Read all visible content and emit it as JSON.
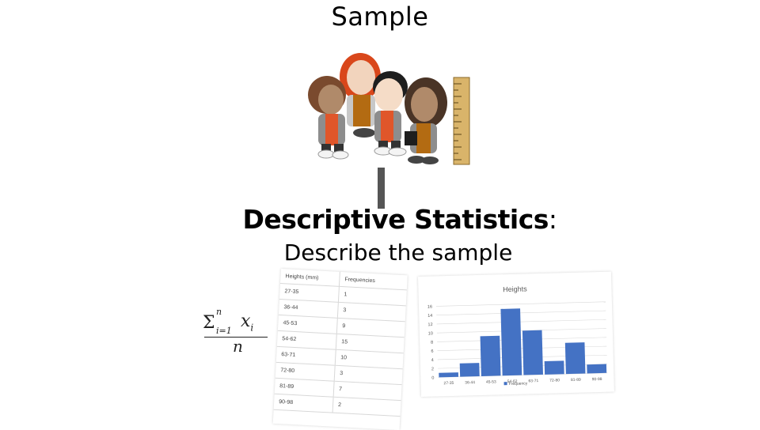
{
  "slide": {
    "title": "Sample",
    "heading": "Descriptive Statistics",
    "heading_colon": ":",
    "subheading": "Describe the sample"
  },
  "formula": {
    "sigma": "Σ",
    "upper_limit": "n",
    "lower_limit": "i=1",
    "term": "x",
    "term_subscript": "i",
    "denominator": "n"
  },
  "illustration": {
    "icon": "people-with-ruler"
  },
  "table": {
    "headers": [
      "Heights (mm)",
      "Frequencies"
    ],
    "rows": [
      [
        "27-35",
        "1"
      ],
      [
        "36-44",
        "3"
      ],
      [
        "45-53",
        "9"
      ],
      [
        "54-62",
        "15"
      ],
      [
        "63-71",
        "10"
      ],
      [
        "72-80",
        "3"
      ],
      [
        "81-89",
        "7"
      ],
      [
        "90-98",
        "2"
      ]
    ]
  },
  "chart_data": {
    "type": "bar",
    "title": "Heights",
    "categories": [
      "27-35",
      "36-44",
      "45-53",
      "54-62",
      "63-71",
      "72-80",
      "81-89",
      "90-98"
    ],
    "series": [
      {
        "name": "Frequency",
        "values": [
          1,
          3,
          9,
          15,
          10,
          3,
          7,
          2
        ]
      }
    ],
    "ylim": [
      0,
      16
    ],
    "yticks": [
      0,
      2,
      4,
      6,
      8,
      10,
      12,
      14,
      16
    ],
    "grid": true,
    "legend": "bottom",
    "colors": {
      "bar": "#4472c4",
      "grid": "#d9d9d9",
      "text": "#595959"
    }
  }
}
